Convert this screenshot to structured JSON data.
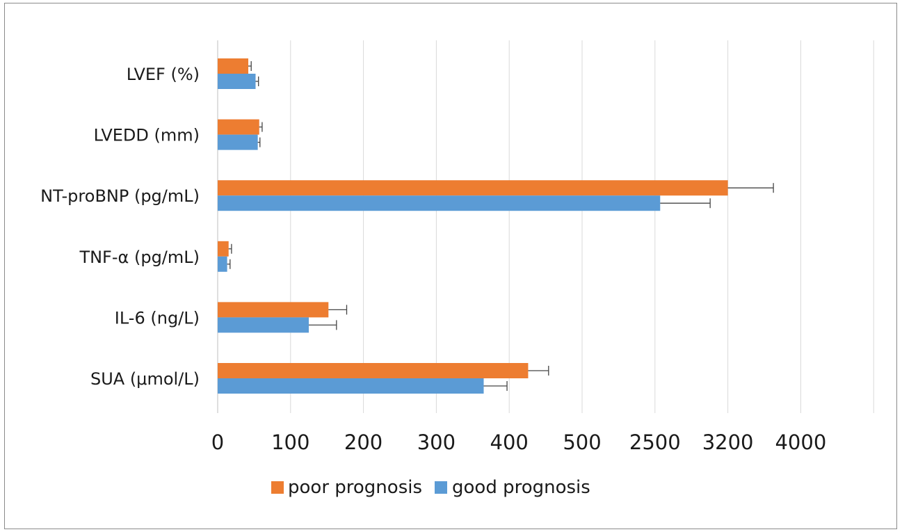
{
  "chart_data": {
    "type": "bar",
    "orientation": "horizontal",
    "categories": [
      "LVEF (%)",
      "LVEDD (mm)",
      "NT-proBNP (pg/mL)",
      "TNF-α (pg/mL)",
      "IL-6 (ng/L)",
      "SUA (μmol/L)"
    ],
    "x_tick_labels": [
      "0",
      "100",
      "200",
      "300",
      "400",
      "500",
      "2500",
      "3200",
      "4000"
    ],
    "xlim": [
      0,
      4000
    ],
    "axis_scale": "broken (linear 0-500, then 2500, 3200, 4000)",
    "grid": true,
    "legend_position": "bottom",
    "series": [
      {
        "name": "poor prognosis",
        "color": "#ED7D31",
        "values": [
          42,
          57,
          3200,
          15,
          152,
          426
        ],
        "errors": [
          4,
          4,
          500,
          4,
          25,
          28
        ]
      },
      {
        "name": "good prognosis",
        "color": "#5B9BD5",
        "values": [
          52,
          55,
          2550,
          13,
          125,
          365
        ],
        "errors": [
          4,
          3,
          480,
          4,
          38,
          32
        ]
      }
    ]
  }
}
